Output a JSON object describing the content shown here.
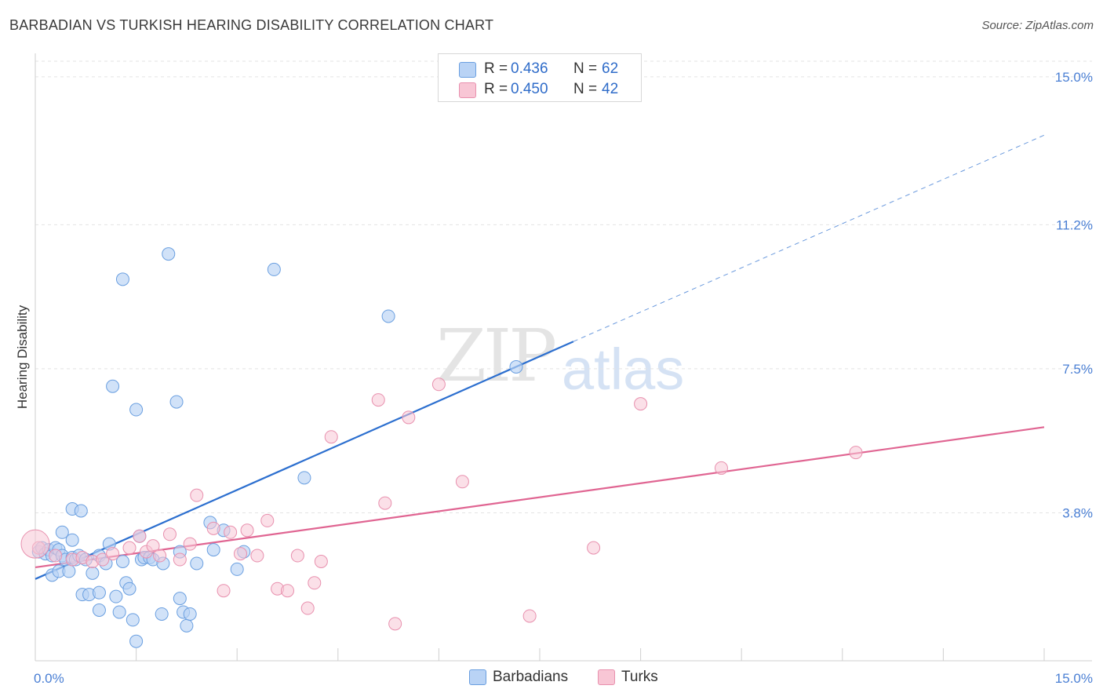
{
  "header": {
    "title": "BARBADIAN VS TURKISH HEARING DISABILITY CORRELATION CHART",
    "source": "Source: ZipAtlas.com"
  },
  "watermark": {
    "zip": "ZIP",
    "atlas": "atlas"
  },
  "legend": {
    "rows": [
      {
        "r_label": "R =",
        "r_value": "0.436",
        "n_label": "N =",
        "n_value": "62"
      },
      {
        "r_label": "R =",
        "r_value": "0.450",
        "n_label": "N =",
        "n_value": "42"
      }
    ]
  },
  "bottom_legend": {
    "series1": "Barbadians",
    "series2": "Turks"
  },
  "colors": {
    "blue_fill": "#b9d3f5",
    "blue_edge": "#6a9fe0",
    "blue_line": "#2c6fcf",
    "pink_fill": "#f8c6d5",
    "pink_edge": "#e890ae",
    "pink_line": "#e06592",
    "grid": "#e3e3e3",
    "tick": "#4a7fd4"
  },
  "chart_data": {
    "type": "scatter",
    "title": "BARBADIAN VS TURKISH HEARING DISABILITY CORRELATION CHART",
    "xlabel": "",
    "ylabel": "Hearing Disability",
    "xlim": [
      0,
      15
    ],
    "ylim": [
      0,
      15.4
    ],
    "x_tick_labels": [
      "0.0%",
      "15.0%"
    ],
    "y_ticks": [
      3.8,
      7.5,
      11.2,
      15.0
    ],
    "y_tick_labels": [
      "3.8%",
      "7.5%",
      "11.2%",
      "15.0%"
    ],
    "grid": true,
    "legend_position": "top-center",
    "series": [
      {
        "name": "Barbadians",
        "r": 0.436,
        "n": 62,
        "trend": {
          "x": [
            0.0,
            8.0
          ],
          "y": [
            2.1,
            8.2
          ],
          "dashed_to": [
            15.0,
            13.5
          ]
        },
        "points": [
          [
            0.05,
            2.8
          ],
          [
            0.1,
            2.9
          ],
          [
            0.15,
            2.75
          ],
          [
            0.2,
            2.85
          ],
          [
            0.25,
            2.7
          ],
          [
            0.3,
            2.9
          ],
          [
            0.35,
            2.85
          ],
          [
            0.25,
            2.2
          ],
          [
            0.35,
            2.3
          ],
          [
            0.4,
            2.7
          ],
          [
            0.45,
            2.6
          ],
          [
            0.55,
            2.65
          ],
          [
            0.6,
            2.6
          ],
          [
            0.5,
            2.3
          ],
          [
            0.65,
            2.7
          ],
          [
            0.75,
            2.6
          ],
          [
            0.85,
            2.25
          ],
          [
            0.95,
            2.7
          ],
          [
            0.55,
            3.9
          ],
          [
            0.68,
            3.85
          ],
          [
            0.4,
            3.3
          ],
          [
            0.55,
            3.1
          ],
          [
            0.7,
            1.7
          ],
          [
            0.8,
            1.7
          ],
          [
            0.95,
            1.75
          ],
          [
            0.95,
            1.3
          ],
          [
            1.05,
            2.5
          ],
          [
            1.1,
            3.0
          ],
          [
            1.2,
            1.65
          ],
          [
            1.25,
            1.25
          ],
          [
            1.3,
            2.55
          ],
          [
            1.35,
            2.0
          ],
          [
            1.4,
            1.85
          ],
          [
            1.45,
            1.05
          ],
          [
            1.5,
            0.5
          ],
          [
            1.55,
            3.2
          ],
          [
            1.58,
            2.6
          ],
          [
            1.62,
            2.65
          ],
          [
            1.7,
            2.65
          ],
          [
            1.75,
            2.6
          ],
          [
            1.88,
            1.2
          ],
          [
            1.9,
            2.5
          ],
          [
            2.15,
            1.6
          ],
          [
            2.2,
            1.25
          ],
          [
            2.25,
            0.9
          ],
          [
            2.3,
            1.2
          ],
          [
            2.15,
            2.8
          ],
          [
            1.3,
            9.8
          ],
          [
            1.15,
            7.05
          ],
          [
            1.5,
            6.45
          ],
          [
            1.98,
            10.45
          ],
          [
            2.1,
            6.65
          ],
          [
            2.6,
            3.55
          ],
          [
            2.65,
            2.85
          ],
          [
            2.8,
            3.35
          ],
          [
            3.0,
            2.35
          ],
          [
            3.1,
            2.8
          ],
          [
            3.55,
            10.05
          ],
          [
            4.0,
            4.7
          ],
          [
            5.25,
            8.85
          ],
          [
            7.15,
            7.55
          ],
          [
            2.4,
            2.5
          ]
        ]
      },
      {
        "name": "Turks",
        "r": 0.45,
        "n": 42,
        "trend": {
          "x": [
            0.0,
            15.0
          ],
          "y": [
            2.4,
            6.0
          ]
        },
        "points": [
          [
            0.05,
            2.9
          ],
          [
            0.3,
            2.7
          ],
          [
            0.55,
            2.6
          ],
          [
            0.7,
            2.65
          ],
          [
            0.85,
            2.55
          ],
          [
            1.0,
            2.6
          ],
          [
            1.15,
            2.75
          ],
          [
            1.4,
            2.9
          ],
          [
            1.55,
            3.2
          ],
          [
            1.65,
            2.8
          ],
          [
            1.75,
            2.95
          ],
          [
            1.85,
            2.7
          ],
          [
            2.0,
            3.25
          ],
          [
            2.15,
            2.6
          ],
          [
            2.3,
            3.0
          ],
          [
            2.4,
            4.25
          ],
          [
            2.65,
            3.4
          ],
          [
            2.8,
            1.8
          ],
          [
            2.9,
            3.3
          ],
          [
            3.05,
            2.75
          ],
          [
            3.15,
            3.35
          ],
          [
            3.3,
            2.7
          ],
          [
            3.45,
            3.6
          ],
          [
            3.6,
            1.85
          ],
          [
            3.75,
            1.8
          ],
          [
            3.9,
            2.7
          ],
          [
            4.05,
            1.35
          ],
          [
            4.15,
            2.0
          ],
          [
            4.25,
            2.55
          ],
          [
            4.4,
            5.75
          ],
          [
            5.1,
            6.7
          ],
          [
            5.2,
            4.05
          ],
          [
            5.35,
            0.95
          ],
          [
            5.55,
            6.25
          ],
          [
            6.0,
            7.1
          ],
          [
            6.35,
            4.6
          ],
          [
            7.35,
            1.15
          ],
          [
            8.3,
            2.9
          ],
          [
            9.0,
            6.6
          ],
          [
            10.2,
            4.95
          ],
          [
            12.2,
            5.35
          ],
          [
            0.0,
            3.0
          ]
        ]
      }
    ]
  }
}
